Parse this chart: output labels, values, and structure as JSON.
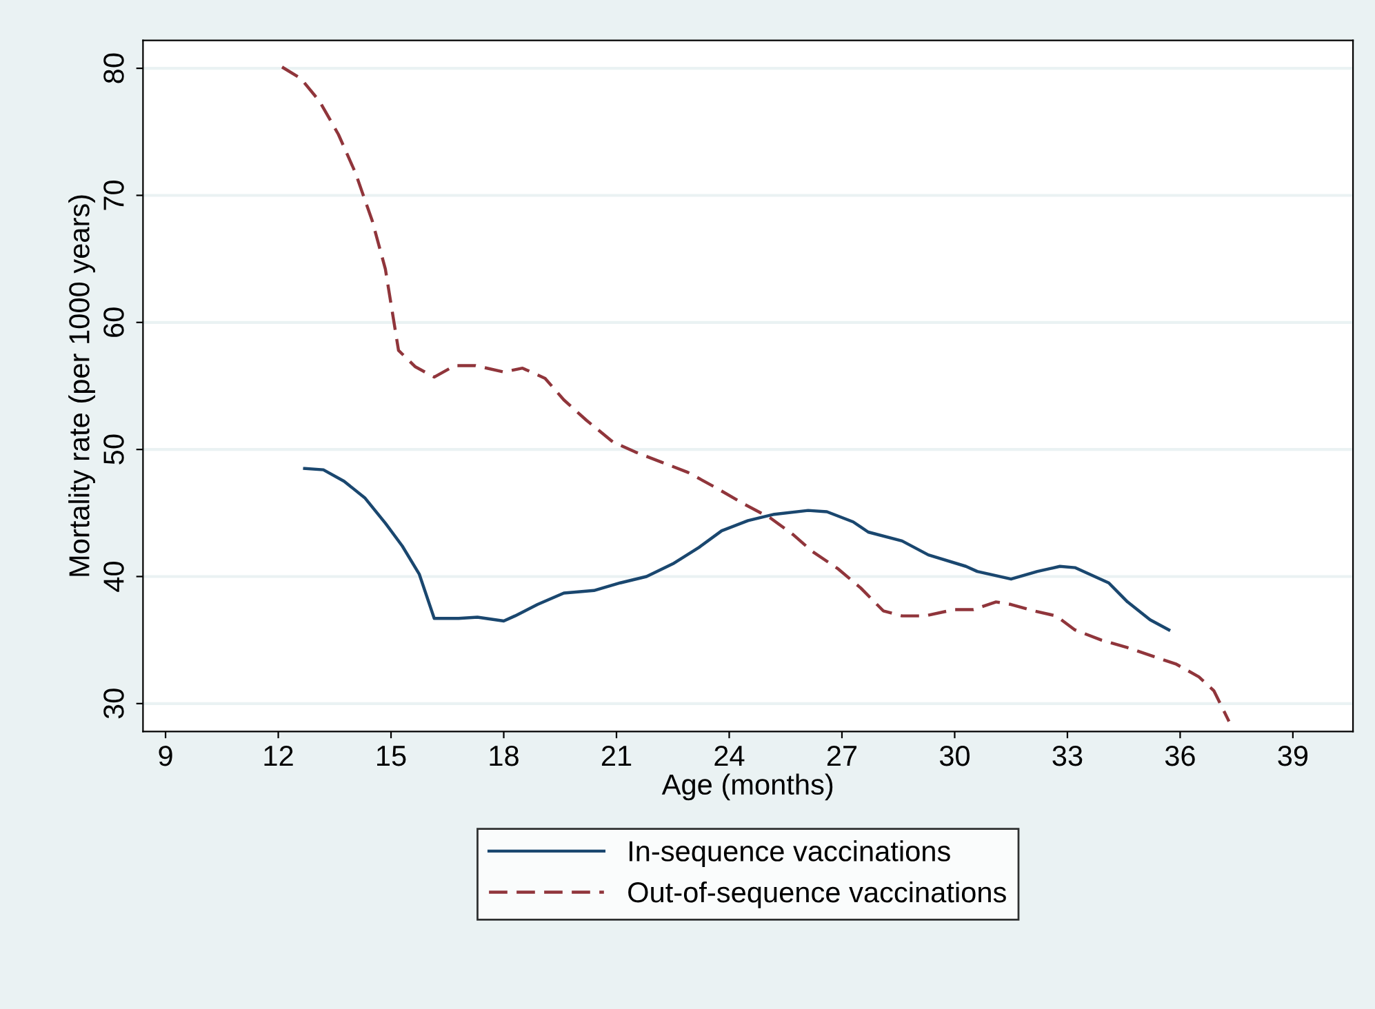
{
  "chart_data": {
    "type": "line",
    "xlabel": "Age (months)",
    "ylabel": "Mortality rate (per 1000 years)",
    "xlim": [
      8.4,
      40.6
    ],
    "ylim": [
      27.8,
      82.2
    ],
    "xticks": [
      9,
      12,
      15,
      18,
      21,
      24,
      27,
      30,
      33,
      36,
      39
    ],
    "yticks": [
      30,
      40,
      50,
      60,
      70,
      80
    ],
    "grid": "y",
    "legend": "bottom",
    "series": [
      {
        "name": "In-sequence vaccinations",
        "color": "#1a476f",
        "line_style": "solid",
        "x": [
          12.7,
          13.2,
          13.75,
          14.3,
          14.85,
          15.3,
          15.75,
          16.15,
          16.8,
          17.3,
          18,
          18.3,
          18.9,
          19.6,
          20.4,
          21.1,
          21.8,
          22.5,
          23.2,
          23.8,
          24.5,
          25.2,
          26.1,
          26.6,
          27.3,
          27.7,
          28.6,
          29.3,
          30.3,
          30.6,
          31.5,
          32.2,
          32.8,
          33.2,
          34.1,
          34.6,
          35.2,
          35.7
        ],
        "values": [
          48.5,
          48.4,
          47.5,
          46.2,
          44.2,
          42.4,
          40.2,
          36.7,
          36.7,
          36.8,
          36.5,
          36.9,
          37.8,
          38.7,
          38.9,
          39.5,
          40,
          41,
          42.3,
          43.6,
          44.4,
          44.9,
          45.2,
          45.1,
          44.3,
          43.5,
          42.8,
          41.7,
          40.8,
          40.4,
          39.8,
          40.4,
          40.8,
          40.7,
          39.5,
          38,
          36.6,
          35.8
        ]
      },
      {
        "name": "Out-of-sequence vaccinations",
        "color": "#90353b",
        "line_style": "dashed",
        "x": [
          12.1,
          12.6,
          13.1,
          13.6,
          14.05,
          14.5,
          14.85,
          15.2,
          15.65,
          16.15,
          16.7,
          17.25,
          18,
          18.5,
          19.1,
          19.6,
          20.2,
          20.9,
          21.5,
          22.2,
          22.9,
          23.7,
          24.4,
          25.1,
          25.7,
          26.2,
          26.9,
          27.5,
          28.1,
          28.6,
          29.2,
          30,
          30.5,
          31.1,
          31.5,
          32.1,
          32.7,
          33.2,
          33.9,
          34.6,
          35.3,
          35.9,
          36.5,
          36.9,
          37.3
        ],
        "values": [
          80.1,
          79.2,
          77.4,
          74.8,
          71.8,
          68,
          64.2,
          57.8,
          56.5,
          55.7,
          56.6,
          56.6,
          56.1,
          56.4,
          55.6,
          53.9,
          52.3,
          50.6,
          49.8,
          49,
          48.2,
          46.9,
          45.7,
          44.6,
          43.3,
          42,
          40.6,
          39.1,
          37.3,
          36.9,
          36.9,
          37.4,
          37.4,
          38,
          37.8,
          37.3,
          36.9,
          35.8,
          35,
          34.4,
          33.7,
          33.1,
          32.1,
          31,
          28.6
        ]
      }
    ]
  }
}
